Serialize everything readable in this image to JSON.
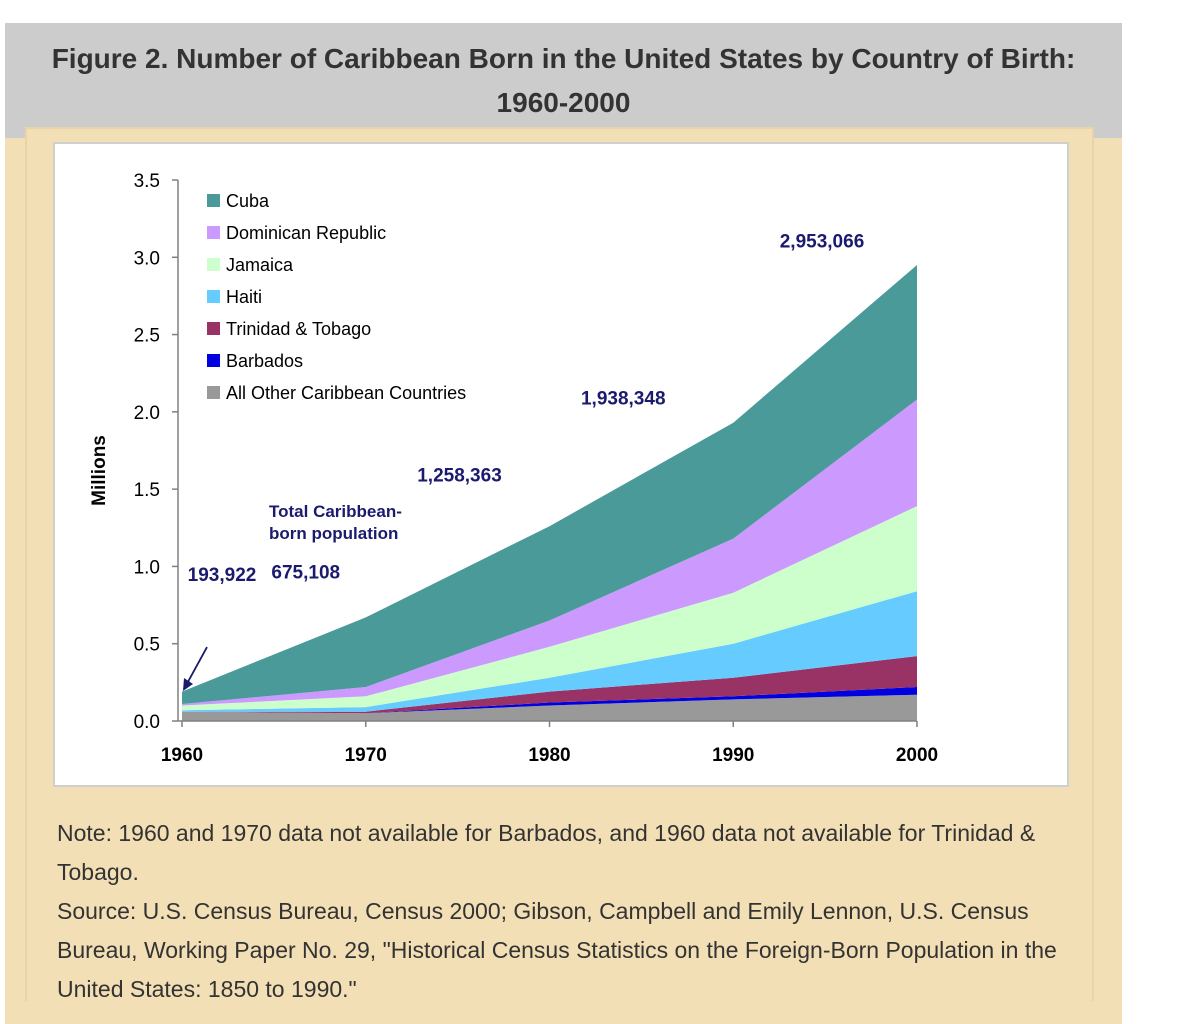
{
  "figure": {
    "title_line1": "Figure 2. Number of Caribbean Born in the United States by Country of Birth:",
    "title_line2": "1960-2000"
  },
  "notes": {
    "note": "Note: 1960 and 1970 data not available for Barbados, and 1960 data not available for Trinidad & Tobago.",
    "source": "Source: U.S. Census Bureau, Census 2000; Gibson, Campbell and Emily Lennon, U.S. Census Bureau, Working Paper No. 29, \"Historical Census Statistics on the Foreign-Born Population in the United States: 1850 to 1990.\""
  },
  "chart_data": {
    "type": "area",
    "stacked": true,
    "ylabel": "Millions",
    "xlabel": "",
    "ylim": [
      0,
      3.5
    ],
    "yticks": [
      "0.0",
      "0.5",
      "1.0",
      "1.5",
      "2.0",
      "2.5",
      "3.0",
      "3.5"
    ],
    "x": [
      "1960",
      "1970",
      "1980",
      "1990",
      "2000"
    ],
    "legend_position": "top-left",
    "series": [
      {
        "name": "All Other Caribbean Countries",
        "color": "#999999",
        "values": [
          0.06,
          0.05,
          0.1,
          0.14,
          0.17
        ]
      },
      {
        "name": "Barbados",
        "color": "#0000e0",
        "values": [
          0,
          0,
          0.02,
          0.02,
          0.05
        ]
      },
      {
        "name": "Trinidad & Tobago",
        "color": "#993366",
        "values": [
          0,
          0.01,
          0.07,
          0.12,
          0.2
        ]
      },
      {
        "name": "Haiti",
        "color": "#66ccff",
        "values": [
          0.01,
          0.03,
          0.09,
          0.22,
          0.42
        ]
      },
      {
        "name": "Jamaica",
        "color": "#ccffcc",
        "values": [
          0.03,
          0.07,
          0.2,
          0.33,
          0.55
        ]
      },
      {
        "name": "Dominican Republic",
        "color": "#cc99ff",
        "values": [
          0.01,
          0.06,
          0.17,
          0.35,
          0.69
        ]
      },
      {
        "name": "Cuba",
        "color": "#4a9a9a",
        "values": [
          0.08,
          0.45,
          0.61,
          0.75,
          0.87
        ]
      }
    ],
    "legend_order": [
      "Cuba",
      "Dominican Republic",
      "Jamaica",
      "Haiti",
      "Trinidad & Tobago",
      "Barbados",
      "All Other Caribbean Countries"
    ],
    "totals": [
      {
        "x": "1960",
        "value": 0.193922,
        "label": "193,922"
      },
      {
        "x": "1970",
        "value": 0.675108,
        "label": "675,108"
      },
      {
        "x": "1980",
        "value": 1.258363,
        "label": "1,258,363"
      },
      {
        "x": "1990",
        "value": 1.938348,
        "label": "1,938,348"
      },
      {
        "x": "2000",
        "value": 2.953066,
        "label": "2,953,066"
      }
    ],
    "annotation_line1": "Total Caribbean-",
    "annotation_line2": "born population"
  }
}
